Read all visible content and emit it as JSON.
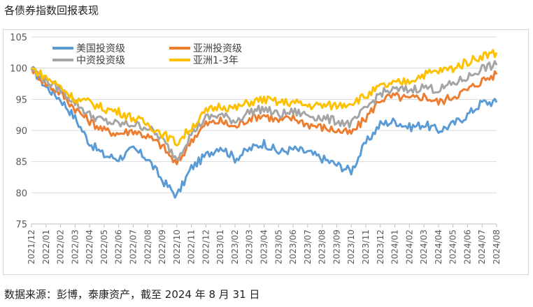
{
  "title": "各债券指数回报表现",
  "source": "数据来源：彭博，泰康资产，截至 2024 年 8 月 31 日",
  "colors": {
    "美国投资级": "#5b9bd5",
    "亚洲投资级": "#ed7d31",
    "中资投资级": "#a5a5a5",
    "亚洲1-3年": "#ffc000"
  },
  "chart_data": {
    "type": "line",
    "title": "各债券指数回报表现",
    "xlabel": "",
    "ylabel": "",
    "ylim": [
      75,
      105
    ],
    "yticks": [
      75,
      80,
      85,
      90,
      95,
      100,
      105
    ],
    "grid": "horizontal",
    "legend_position": "top-left",
    "x": [
      "2021/12",
      "2022/01",
      "2022/02",
      "2022/03",
      "2022/04",
      "2022/05",
      "2022/06",
      "2022/07",
      "2022/08",
      "2022/09",
      "2022/10",
      "2022/11",
      "2022/12",
      "2023/01",
      "2023/02",
      "2023/03",
      "2023/04",
      "2023/05",
      "2023/06",
      "2023/07",
      "2023/08",
      "2023/09",
      "2023/10",
      "2023/11",
      "2023/12",
      "2024/01",
      "2024/02",
      "2024/03",
      "2024/04",
      "2024/05",
      "2024/06",
      "2024/07",
      "2024/08"
    ],
    "series": [
      {
        "name": "美国投资级",
        "values": [
          100.0,
          97.0,
          95.0,
          92.0,
          88.0,
          86.0,
          85.5,
          87.0,
          85.5,
          82.0,
          79.5,
          84.0,
          86.0,
          87.5,
          85.5,
          87.0,
          88.0,
          86.5,
          87.0,
          86.5,
          85.5,
          84.5,
          83.5,
          88.0,
          91.0,
          91.5,
          90.5,
          91.0,
          90.0,
          91.0,
          92.5,
          94.5,
          94.5
        ]
      },
      {
        "name": "亚洲投资级",
        "values": [
          100.0,
          97.5,
          96.0,
          93.5,
          91.5,
          90.0,
          89.5,
          90.0,
          89.0,
          87.5,
          84.5,
          88.5,
          91.0,
          91.5,
          90.5,
          92.0,
          92.5,
          91.5,
          92.0,
          91.0,
          90.5,
          90.0,
          89.5,
          92.0,
          95.0,
          95.5,
          95.0,
          95.5,
          94.5,
          95.5,
          96.5,
          98.0,
          99.0
        ]
      },
      {
        "name": "中资投资级",
        "values": [
          100.0,
          98.0,
          96.5,
          94.5,
          92.5,
          91.5,
          91.0,
          91.0,
          90.5,
          88.5,
          85.5,
          89.5,
          92.0,
          92.5,
          91.5,
          93.0,
          93.5,
          92.5,
          93.0,
          92.5,
          92.0,
          91.5,
          91.0,
          93.5,
          96.0,
          96.5,
          96.5,
          97.0,
          96.5,
          97.5,
          98.5,
          100.0,
          100.5
        ]
      },
      {
        "name": "亚洲1-3年",
        "values": [
          100.0,
          98.5,
          97.0,
          95.0,
          94.5,
          93.5,
          93.0,
          92.0,
          91.0,
          89.5,
          88.0,
          90.5,
          93.0,
          94.0,
          93.5,
          94.5,
          95.0,
          94.5,
          94.5,
          94.0,
          94.0,
          94.0,
          94.5,
          95.5,
          97.0,
          97.5,
          98.0,
          99.0,
          99.5,
          100.0,
          101.0,
          102.0,
          102.5
        ]
      }
    ]
  }
}
